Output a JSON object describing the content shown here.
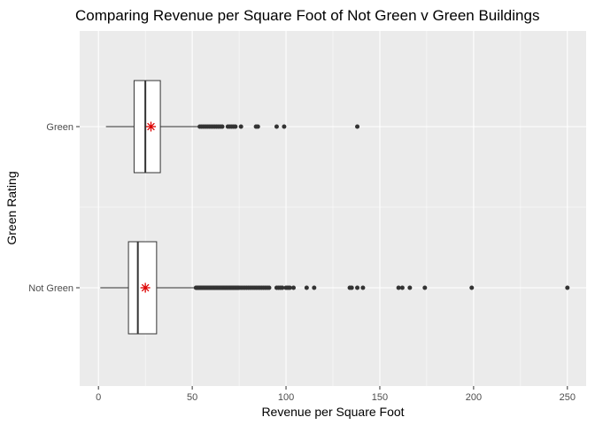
{
  "chart_data": {
    "type": "boxplot",
    "title": "Comparing Revenue per Square Foot of Not Green v Green Buildings",
    "xlabel": "Revenue per Square Foot",
    "ylabel": "Green Rating",
    "xlim": [
      -10,
      260
    ],
    "xticks": [
      0,
      50,
      100,
      150,
      200,
      250
    ],
    "orientation": "horizontal",
    "grid": true,
    "legend": "none",
    "colors": {
      "panel": "#ebebeb",
      "grid_major": "#ffffff",
      "box_fill": "#ffffff",
      "box_stroke": "#333333",
      "outlier": "#333333",
      "mean_marker": "#dd0000"
    },
    "categories": [
      "Not Green",
      "Green"
    ],
    "boxes": [
      {
        "category": "Not Green",
        "whisker_low": 1,
        "q1": 16,
        "median": 21,
        "q3": 31,
        "whisker_high": 52,
        "mean": 25,
        "outliers": [
          52,
          52.5,
          53,
          53.5,
          54,
          54.5,
          55,
          55.5,
          56,
          56.5,
          57,
          57.5,
          58,
          58.5,
          59,
          59.5,
          60,
          60.5,
          61,
          61.5,
          62,
          62.5,
          63,
          63.5,
          64,
          64.5,
          65,
          65.5,
          66,
          66.5,
          67,
          67.5,
          68,
          68.5,
          69,
          69.5,
          70,
          70.5,
          71,
          71.5,
          72,
          72.5,
          73,
          73.5,
          74,
          74.5,
          75,
          76,
          77,
          78,
          79,
          80,
          81,
          82,
          83,
          84,
          85,
          86,
          87,
          88,
          89,
          90,
          91,
          95,
          96,
          97,
          98,
          100,
          101,
          102,
          104,
          111,
          115,
          134,
          135,
          138,
          141,
          160,
          162,
          166,
          174,
          199,
          250
        ]
      },
      {
        "category": "Green",
        "whisker_low": 4,
        "q1": 19,
        "median": 25,
        "q3": 33,
        "whisker_high": 53,
        "mean": 28,
        "outliers": [
          54,
          55,
          56,
          57,
          58,
          59,
          60,
          61,
          62,
          63,
          64,
          65,
          66,
          69,
          70,
          71,
          72,
          73,
          76,
          84,
          85,
          95,
          99,
          138
        ]
      }
    ]
  }
}
